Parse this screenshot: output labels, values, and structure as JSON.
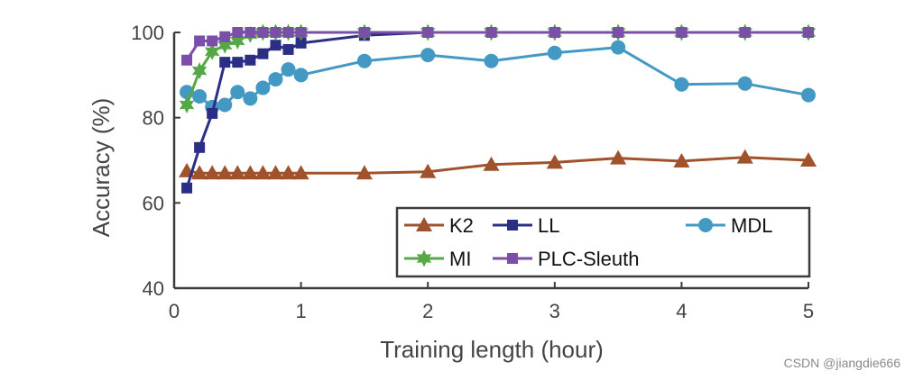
{
  "chart_data": {
    "type": "line",
    "title": "",
    "xlabel": "Training length (hour)",
    "ylabel": "Accuracy (%)",
    "xlim": [
      0,
      5
    ],
    "ylim": [
      40,
      100
    ],
    "xticks": [
      0,
      1,
      2,
      3,
      4,
      5
    ],
    "yticks": [
      40,
      60,
      80,
      100
    ],
    "xtick_labels": [
      "0",
      "1",
      "2",
      "3",
      "4",
      "5"
    ],
    "ytick_labels": [
      "40",
      "60",
      "80",
      "100"
    ],
    "grid": false,
    "legend_position": "bottom-right",
    "series": [
      {
        "name": "K2",
        "color": "#a0522d",
        "marker": "triangle",
        "x": [
          0.1,
          0.2,
          0.3,
          0.4,
          0.5,
          0.6,
          0.7,
          0.8,
          0.9,
          1.0,
          1.5,
          2.0,
          2.5,
          3.0,
          3.5,
          4.0,
          4.5,
          5.0
        ],
        "values": [
          67.5,
          67,
          67,
          67,
          67,
          67,
          67,
          67,
          67,
          67,
          67,
          67.3,
          69,
          69.5,
          70.5,
          69.8,
          70.7,
          70
        ]
      },
      {
        "name": "LL",
        "color": "#2a2f85",
        "marker": "square",
        "x": [
          0.1,
          0.2,
          0.3,
          0.4,
          0.5,
          0.6,
          0.7,
          0.8,
          0.9,
          1.0,
          1.5,
          2.0,
          2.5,
          3.0,
          3.5,
          4.0,
          4.5,
          5.0
        ],
        "values": [
          63.5,
          73,
          81,
          93,
          93,
          93.5,
          95,
          97,
          96,
          97.5,
          99.3,
          100,
          100,
          100,
          100,
          100,
          100,
          100
        ]
      },
      {
        "name": "MDL",
        "color": "#4499c4",
        "marker": "circle",
        "x": [
          0.1,
          0.2,
          0.3,
          0.4,
          0.5,
          0.6,
          0.7,
          0.8,
          0.9,
          1.0,
          1.5,
          2.0,
          2.5,
          3.0,
          3.5,
          4.0,
          4.5,
          5.0
        ],
        "values": [
          86,
          85,
          82.5,
          83,
          86,
          84.5,
          87,
          89,
          91.3,
          90,
          93.3,
          94.7,
          93.3,
          95.2,
          96.5,
          87.8,
          88,
          85.3
        ]
      },
      {
        "name": "MI",
        "color": "#55a846",
        "marker": "star",
        "x": [
          0.1,
          0.2,
          0.3,
          0.4,
          0.5,
          0.6,
          0.7,
          0.8,
          0.9,
          1.0,
          1.5,
          2.0,
          2.5,
          3.0,
          3.5,
          4.0,
          4.5,
          5.0
        ],
        "values": [
          83,
          91,
          95.5,
          97,
          98,
          99.5,
          100,
          100,
          100,
          100,
          100,
          100,
          100,
          100,
          100,
          100,
          100,
          100
        ]
      },
      {
        "name": "PLC-Sleuth",
        "color": "#7a4fa8",
        "marker": "square",
        "x": [
          0.1,
          0.2,
          0.3,
          0.4,
          0.5,
          0.6,
          0.7,
          0.8,
          0.9,
          1.0,
          1.5,
          2.0,
          2.5,
          3.0,
          3.5,
          4.0,
          4.5,
          5.0
        ],
        "values": [
          93.5,
          98,
          98,
          99,
          100,
          100,
          100,
          100,
          100,
          100,
          100,
          100,
          100,
          100,
          100,
          100,
          100,
          100
        ]
      }
    ]
  },
  "watermark": "CSDN @jiangdie666"
}
